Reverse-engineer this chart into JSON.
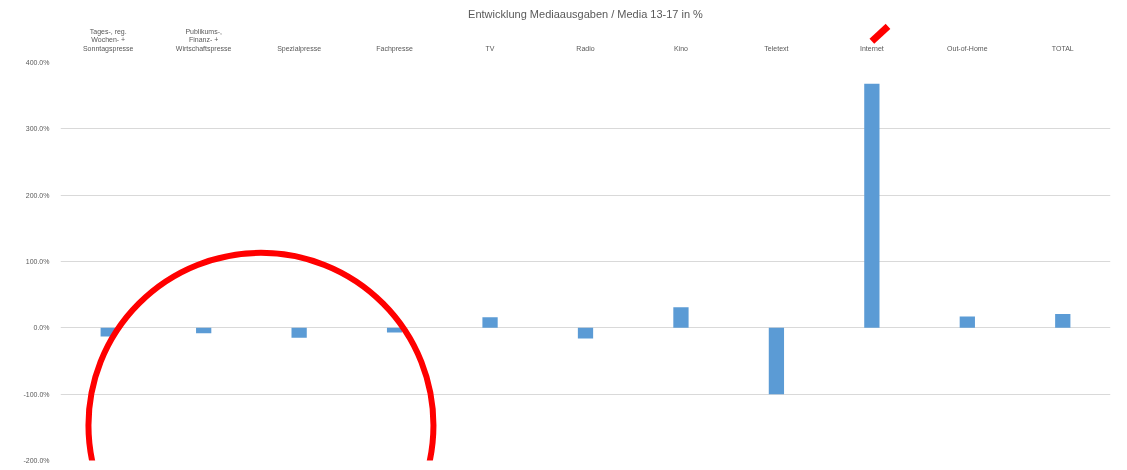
{
  "chart_data": {
    "type": "bar",
    "title": "Entwicklung Mediaausgaben / Media 13-17 in %",
    "categories": [
      "Tages-, reg.\nWochen- +\nSonntagspresse",
      "Publikums-,\nFinanz- +\nWirtschaftspresse",
      "Spezialpresse",
      "Fachpresse",
      "TV",
      "Radio",
      "Kino",
      "Teletext",
      "Internet",
      "Out-of-Home",
      "TOTAL"
    ],
    "values": [
      -13,
      -8,
      -15,
      -7,
      16,
      -16,
      31,
      -100,
      368,
      17,
      21
    ],
    "color": "#5b9bd5",
    "ylim": [
      -200,
      400
    ],
    "yticks": [
      {
        "value": -200,
        "label": "-200.0%"
      },
      {
        "value": -100,
        "label": "-100.0%"
      },
      {
        "value": 0,
        "label": "0.0%"
      },
      {
        "value": 100,
        "label": "100.0%"
      },
      {
        "value": 200,
        "label": "200.0%"
      },
      {
        "value": 300,
        "label": "300.0%"
      },
      {
        "value": 400,
        "label": "400.0%"
      }
    ],
    "grid": "y"
  }
}
